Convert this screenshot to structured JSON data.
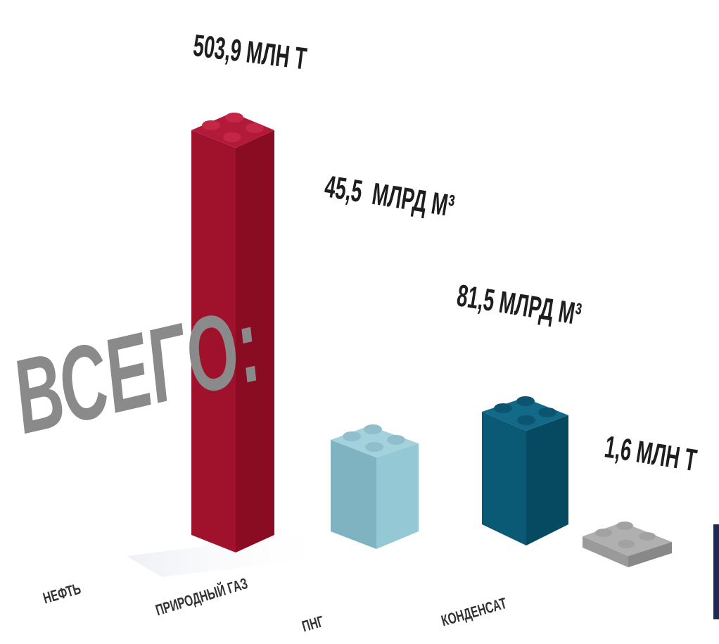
{
  "title": "ВСЕГО:",
  "items": [
    {
      "label": "НЕФТЬ",
      "value": "503,9 МЛН Т"
    },
    {
      "label": "ПРИРОДНЫЙ ГАЗ",
      "value": "45,5  МЛРД М³"
    },
    {
      "label": "ПНГ",
      "value": "81,5 МЛРД М³"
    },
    {
      "label": "КОНДЕНСАТ",
      "value": "1,6 МЛН Т"
    }
  ]
}
